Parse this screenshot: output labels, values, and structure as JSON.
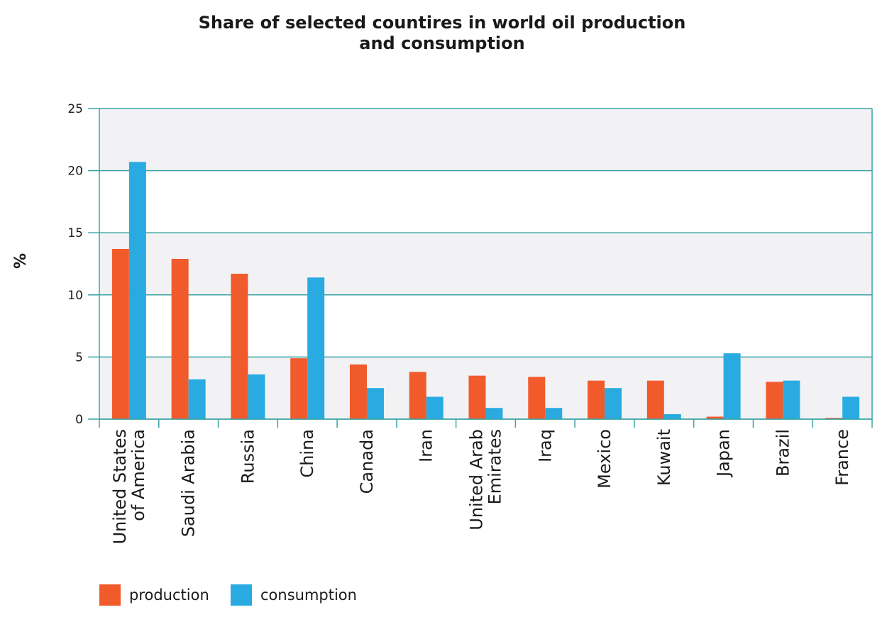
{
  "chart_data": {
    "type": "bar",
    "title": "Share of selected countires in world oil production and consumption",
    "y_label": "%",
    "categories": [
      "United States of America",
      "Saudi Arabia",
      "Russia",
      "China",
      "Canada",
      "Iran",
      "United Arab Emirates",
      "Iraq",
      "Mexico",
      "Kuwait",
      "Japan",
      "Brazil",
      "France"
    ],
    "series": [
      {
        "name": "production",
        "color": "#f15a2b",
        "values": [
          13.7,
          12.9,
          11.7,
          4.9,
          4.4,
          3.8,
          3.5,
          3.4,
          3.1,
          3.1,
          0.2,
          3.0,
          0.1
        ]
      },
      {
        "name": "consumption",
        "color": "#29abe2",
        "values": [
          20.7,
          3.2,
          3.6,
          11.4,
          2.5,
          1.8,
          0.9,
          0.9,
          2.5,
          0.4,
          5.3,
          3.1,
          1.8
        ]
      }
    ],
    "ylim": [
      0,
      25
    ],
    "yticks": [
      0,
      5,
      10,
      15,
      20,
      25
    ],
    "grid": true
  }
}
